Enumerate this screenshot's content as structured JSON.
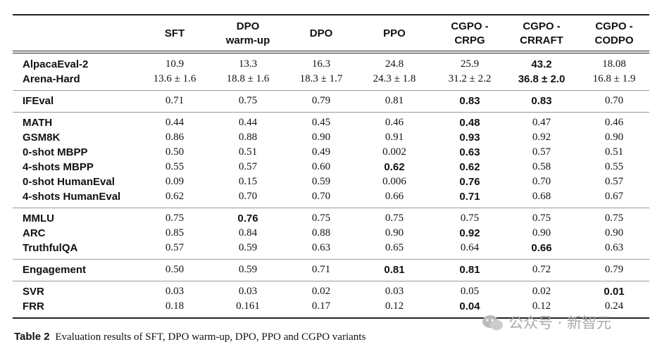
{
  "table": {
    "columns": [
      [
        "SFT"
      ],
      [
        "DPO",
        "warm-up"
      ],
      [
        "DPO"
      ],
      [
        "PPO"
      ],
      [
        "CGPO -",
        "CRPG"
      ],
      [
        "CGPO -",
        "CRRAFT"
      ],
      [
        "CGPO -",
        "CODPO"
      ]
    ],
    "groups": [
      {
        "rows": [
          {
            "label": "AlpacaEval-2",
            "values": [
              "10.9",
              "13.3",
              "16.3",
              "24.8",
              "25.9",
              "43.2",
              "18.08"
            ],
            "bold": [
              5
            ]
          },
          {
            "label": "Arena-Hard",
            "values": [
              "13.6 ± 1.6",
              "18.8 ± 1.6",
              "18.3 ± 1.7",
              "24.3 ± 1.8",
              "31.2 ± 2.2",
              "36.8 ± 2.0",
              "16.8 ± 1.9"
            ],
            "bold": [
              5
            ]
          }
        ]
      },
      {
        "rows": [
          {
            "label": "IFEval",
            "values": [
              "0.71",
              "0.75",
              "0.79",
              "0.81",
              "0.83",
              "0.83",
              "0.70"
            ],
            "bold": [
              4,
              5
            ]
          }
        ]
      },
      {
        "rows": [
          {
            "label": "MATH",
            "values": [
              "0.44",
              "0.44",
              "0.45",
              "0.46",
              "0.48",
              "0.47",
              "0.46"
            ],
            "bold": [
              4
            ]
          },
          {
            "label": "GSM8K",
            "values": [
              "0.86",
              "0.88",
              "0.90",
              "0.91",
              "0.93",
              "0.92",
              "0.90"
            ],
            "bold": [
              4
            ]
          },
          {
            "label": "0-shot MBPP",
            "values": [
              "0.50",
              "0.51",
              "0.49",
              "0.002",
              "0.63",
              "0.57",
              "0.51"
            ],
            "bold": [
              4
            ]
          },
          {
            "label": "4-shots MBPP",
            "values": [
              "0.55",
              "0.57",
              "0.60",
              "0.62",
              "0.62",
              "0.58",
              "0.55"
            ],
            "bold": [
              3,
              4
            ]
          },
          {
            "label": "0-shot HumanEval",
            "values": [
              "0.09",
              "0.15",
              "0.59",
              "0.006",
              "0.76",
              "0.70",
              "0.57"
            ],
            "bold": [
              4
            ]
          },
          {
            "label": "4-shots HumanEval",
            "values": [
              "0.62",
              "0.70",
              "0.70",
              "0.66",
              "0.71",
              "0.68",
              "0.67"
            ],
            "bold": [
              4
            ]
          }
        ]
      },
      {
        "rows": [
          {
            "label": "MMLU",
            "values": [
              "0.75",
              "0.76",
              "0.75",
              "0.75",
              "0.75",
              "0.75",
              "0.75"
            ],
            "bold": [
              1
            ]
          },
          {
            "label": "ARC",
            "values": [
              "0.85",
              "0.84",
              "0.88",
              "0.90",
              "0.92",
              "0.90",
              "0.90"
            ],
            "bold": [
              4
            ]
          },
          {
            "label": "TruthfulQA",
            "values": [
              "0.57",
              "0.59",
              "0.63",
              "0.65",
              "0.64",
              "0.66",
              "0.63"
            ],
            "bold": [
              5
            ]
          }
        ]
      },
      {
        "rows": [
          {
            "label": "Engagement",
            "values": [
              "0.50",
              "0.59",
              "0.71",
              "0.81",
              "0.81",
              "0.72",
              "0.79"
            ],
            "bold": [
              3,
              4
            ]
          }
        ]
      },
      {
        "rows": [
          {
            "label": "SVR",
            "values": [
              "0.03",
              "0.03",
              "0.02",
              "0.03",
              "0.05",
              "0.02",
              "0.01"
            ],
            "bold": [
              6
            ]
          },
          {
            "label": "FRR",
            "values": [
              "0.18",
              "0.161",
              "0.17",
              "0.12",
              "0.04",
              "0.12",
              "0.24"
            ],
            "bold": [
              4
            ]
          }
        ]
      }
    ]
  },
  "caption": {
    "label": "Table 2",
    "text": "Evaluation results of SFT, DPO warm-up, DPO, PPO and CGPO variants"
  },
  "watermark": "公众号 · 新智元"
}
